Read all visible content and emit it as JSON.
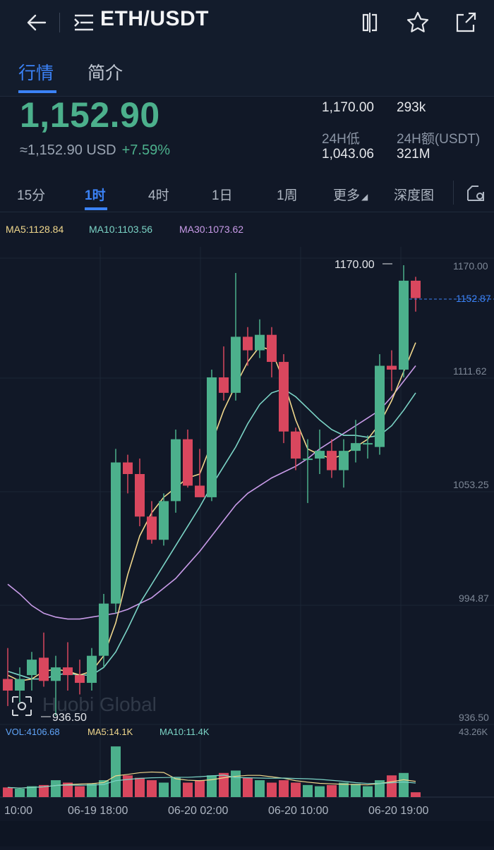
{
  "header": {
    "back_icon": "arrow-left-icon",
    "menu_icon": "menu-icon",
    "pair": "ETH/USDT"
  },
  "tabs": [
    {
      "label": "行情",
      "active": true
    },
    {
      "label": "简介",
      "active": false
    }
  ],
  "ticker": {
    "last_price": "1,152.90",
    "converted": "≈1,152.90 USD",
    "change": "+7.59%",
    "high_value": "1,170.00",
    "volume_value": "293k",
    "low_label": "24H低",
    "low_value": "1,043.06",
    "amount_label": "24H额(USDT)",
    "amount_value": "321M"
  },
  "intervals": [
    {
      "label": "15分",
      "active": false
    },
    {
      "label": "1时",
      "active": true
    },
    {
      "label": "4时",
      "active": false
    },
    {
      "label": "1日",
      "active": false
    },
    {
      "label": "1周",
      "active": false
    },
    {
      "label": "更多",
      "active": false
    },
    {
      "label": "深度图",
      "active": false
    }
  ],
  "chart_data": {
    "type": "candlestick",
    "ma_labels": {
      "ma5": "MA5:1128.84",
      "ma10": "MA10:1103.56",
      "ma30": "MA30:1073.62"
    },
    "y_ticks": [
      "1170.00",
      "1111.62",
      "1053.25",
      "994.87",
      "936.50"
    ],
    "current_price_label": "1152.87",
    "max_label": "1170.00",
    "min_label": "936.50",
    "watermark": "Huobi Global",
    "x_ticks": [
      "10:00",
      "06-19 18:00",
      "06-20 02:00",
      "06-20 10:00",
      "06-20 19:00"
    ],
    "candles": [
      {
        "o": 956,
        "h": 972,
        "l": 942,
        "c": 950
      },
      {
        "o": 950,
        "h": 962,
        "l": 944,
        "c": 956
      },
      {
        "o": 958,
        "h": 970,
        "l": 950,
        "c": 966
      },
      {
        "o": 967,
        "h": 980,
        "l": 952,
        "c": 955
      },
      {
        "o": 955,
        "h": 968,
        "l": 937,
        "c": 962
      },
      {
        "o": 962,
        "h": 975,
        "l": 950,
        "c": 958
      },
      {
        "o": 958,
        "h": 966,
        "l": 948,
        "c": 954
      },
      {
        "o": 954,
        "h": 972,
        "l": 950,
        "c": 968
      },
      {
        "o": 968,
        "h": 1000,
        "l": 962,
        "c": 995
      },
      {
        "o": 995,
        "h": 1075,
        "l": 990,
        "c": 1068
      },
      {
        "o": 1068,
        "h": 1072,
        "l": 1052,
        "c": 1062
      },
      {
        "o": 1062,
        "h": 1070,
        "l": 1035,
        "c": 1040
      },
      {
        "o": 1040,
        "h": 1048,
        "l": 1026,
        "c": 1028
      },
      {
        "o": 1028,
        "h": 1052,
        "l": 1025,
        "c": 1048
      },
      {
        "o": 1048,
        "h": 1085,
        "l": 1042,
        "c": 1080
      },
      {
        "o": 1080,
        "h": 1085,
        "l": 1055,
        "c": 1056
      },
      {
        "o": 1056,
        "h": 1075,
        "l": 1052,
        "c": 1050
      },
      {
        "o": 1050,
        "h": 1116,
        "l": 1048,
        "c": 1112
      },
      {
        "o": 1112,
        "h": 1128,
        "l": 1100,
        "c": 1104
      },
      {
        "o": 1104,
        "h": 1166,
        "l": 1100,
        "c": 1133
      },
      {
        "o": 1133,
        "h": 1138,
        "l": 1118,
        "c": 1126
      },
      {
        "o": 1126,
        "h": 1142,
        "l": 1122,
        "c": 1134
      },
      {
        "o": 1134,
        "h": 1138,
        "l": 1112,
        "c": 1120
      },
      {
        "o": 1120,
        "h": 1124,
        "l": 1078,
        "c": 1084
      },
      {
        "o": 1084,
        "h": 1086,
        "l": 1064,
        "c": 1070
      },
      {
        "o": 1070,
        "h": 1080,
        "l": 1047,
        "c": 1070
      },
      {
        "o": 1070,
        "h": 1085,
        "l": 1062,
        "c": 1074
      },
      {
        "o": 1074,
        "h": 1080,
        "l": 1060,
        "c": 1064
      },
      {
        "o": 1064,
        "h": 1080,
        "l": 1055,
        "c": 1074
      },
      {
        "o": 1074,
        "h": 1090,
        "l": 1068,
        "c": 1078
      },
      {
        "o": 1078,
        "h": 1082,
        "l": 1070,
        "c": 1078
      },
      {
        "o": 1076,
        "h": 1124,
        "l": 1072,
        "c": 1118
      },
      {
        "o": 1118,
        "h": 1126,
        "l": 1105,
        "c": 1116
      },
      {
        "o": 1116,
        "h": 1170,
        "l": 1112,
        "c": 1162
      },
      {
        "o": 1162,
        "h": 1164,
        "l": 1146,
        "c": 1153
      }
    ],
    "ma5": [
      958,
      955,
      956,
      960,
      961,
      960,
      958,
      960,
      968,
      985,
      1010,
      1030,
      1042,
      1050,
      1055,
      1060,
      1062,
      1078,
      1095,
      1108,
      1120,
      1128,
      1126,
      1110,
      1090,
      1075,
      1072,
      1070,
      1072,
      1076,
      1080,
      1088,
      1100,
      1115,
      1130
    ],
    "ma10": [
      960,
      958,
      956,
      956,
      958,
      959,
      958,
      958,
      962,
      970,
      982,
      995,
      1005,
      1015,
      1025,
      1035,
      1045,
      1056,
      1066,
      1076,
      1088,
      1098,
      1104,
      1106,
      1102,
      1096,
      1090,
      1085,
      1082,
      1082,
      1081,
      1082,
      1087,
      1095,
      1104
    ],
    "ma30": [
      1005,
      1000,
      994,
      990,
      988,
      987,
      987,
      988,
      989,
      990,
      992,
      995,
      998,
      1003,
      1008,
      1015,
      1022,
      1030,
      1038,
      1046,
      1052,
      1056,
      1060,
      1063,
      1066,
      1070,
      1075,
      1079,
      1083,
      1087,
      1091,
      1095,
      1102,
      1110,
      1118
    ],
    "volume_labels": {
      "vol": "VOL:4106.68",
      "ma5": "MA5:14.1K",
      "ma10": "MA10:11.4K",
      "max": "43.26K"
    },
    "volumes": [
      8,
      7,
      9,
      10,
      14,
      12,
      9,
      11,
      14,
      42,
      18,
      16,
      14,
      12,
      16,
      12,
      14,
      18,
      20,
      22,
      16,
      14,
      12,
      14,
      12,
      10,
      9,
      10,
      12,
      11,
      9,
      14,
      18,
      20,
      4
    ]
  }
}
